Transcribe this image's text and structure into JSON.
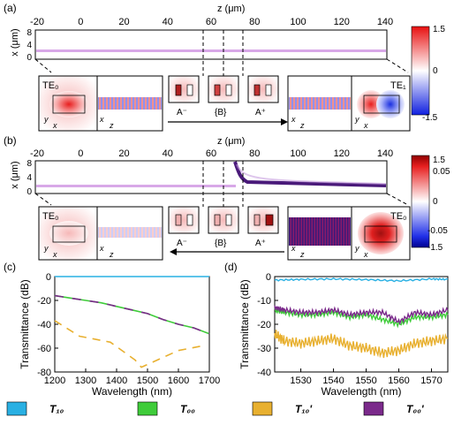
{
  "panel_a": {
    "label": "(a)",
    "z_axis_label": "z (μm)",
    "x_axis_label": "x (μm)",
    "z_ticks": [
      "-20",
      "0",
      "20",
      "40",
      "60",
      "80",
      "100",
      "120",
      "140"
    ],
    "x_ticks": [
      "8",
      "4",
      "0"
    ],
    "colorbar_ticks": [
      "1.5",
      "0",
      "-1.5"
    ],
    "left_mode": "TE₀",
    "right_mode": "TE₁",
    "boxes": [
      "A⁻",
      "{B}",
      "A⁺"
    ],
    "axis_y": "y",
    "axis_x": "x",
    "axis_z": "z"
  },
  "panel_b": {
    "label": "(b)",
    "z_axis_label": "z (μm)",
    "x_axis_label": "x (μm)",
    "z_ticks": [
      "-20",
      "0",
      "20",
      "40",
      "60",
      "80",
      "100",
      "120",
      "140"
    ],
    "x_ticks": [
      "8",
      "4",
      "0"
    ],
    "colorbar_ticks_outer": [
      "1.5",
      "-1.5"
    ],
    "colorbar_ticks_inner": [
      "0.05",
      "0",
      "-0.05"
    ],
    "left_mode": "TE₀",
    "right_mode": "TE₀",
    "boxes": [
      "A⁻",
      "{B}",
      "A⁺"
    ],
    "axis_y": "y",
    "axis_x": "x",
    "axis_z": "z"
  },
  "chart_data": [
    {
      "type": "line",
      "panel": "(c)",
      "xlabel": "Wavelength (nm)",
      "ylabel": "Transmittance (dB)",
      "xlim": [
        1200,
        1700
      ],
      "ylim": [
        -80,
        0
      ],
      "x_ticks": [
        "1200",
        "1300",
        "1400",
        "1500",
        "1600",
        "1700"
      ],
      "y_ticks": [
        "0",
        "-20",
        "-40",
        "-60",
        "-80"
      ],
      "series": [
        {
          "name": "T10",
          "color": "#29b0e3",
          "style": "solid",
          "x": [
            1200,
            1700
          ],
          "y": [
            0,
            0
          ]
        },
        {
          "name": "T00",
          "color": "#3fcc3a",
          "style": "solid",
          "x": [
            1200,
            1250,
            1300,
            1350,
            1400,
            1450,
            1500,
            1550,
            1600,
            1650,
            1700
          ],
          "y": [
            -16,
            -18,
            -20,
            -22,
            -25,
            -28,
            -31,
            -36,
            -40,
            -43,
            -48
          ]
        },
        {
          "name": "T00'",
          "color": "#7b2a8b",
          "style": "dash",
          "x": [
            1200,
            1250,
            1300,
            1350,
            1400,
            1450,
            1500,
            1550,
            1600,
            1650,
            1700
          ],
          "y": [
            -16,
            -18,
            -20,
            -22,
            -25,
            -28,
            -31,
            -36,
            -40,
            -43,
            -48
          ]
        },
        {
          "name": "T10'",
          "color": "#e8b030",
          "style": "dash",
          "x": [
            1200,
            1280,
            1380,
            1460,
            1480,
            1600,
            1680
          ],
          "y": [
            -37,
            -50,
            -55,
            -70,
            -76,
            -62,
            -58
          ]
        }
      ]
    },
    {
      "type": "line",
      "panel": "(d)",
      "xlabel": "Wavelength (nm)",
      "ylabel": "Transmittance (dB)",
      "xlim": [
        1522,
        1575
      ],
      "ylim": [
        -40,
        0
      ],
      "x_ticks": [
        "1530",
        "1540",
        "1550",
        "1560",
        "1570"
      ],
      "y_ticks": [
        "0",
        "-10",
        "-20",
        "-30",
        "-40"
      ],
      "series": [
        {
          "name": "T10",
          "color": "#29b0e3",
          "x": [
            1522,
            1530,
            1540,
            1550,
            1560,
            1570,
            1575
          ],
          "y": [
            -1.5,
            -1.2,
            -1.0,
            -1.3,
            -1.8,
            -1.0,
            -1.2
          ]
        },
        {
          "name": "T00",
          "color": "#3fcc3a",
          "x": [
            1522,
            1525,
            1530,
            1535,
            1540,
            1545,
            1550,
            1555,
            1560,
            1565,
            1570,
            1575
          ],
          "y": [
            -14,
            -15,
            -16,
            -16,
            -15,
            -17,
            -16,
            -18,
            -20,
            -17,
            -17,
            -16
          ]
        },
        {
          "name": "T00'",
          "color": "#7b2a8b",
          "x": [
            1522,
            1525,
            1530,
            1535,
            1540,
            1545,
            1550,
            1555,
            1560,
            1565,
            1570,
            1575
          ],
          "y": [
            -13,
            -14,
            -15,
            -15,
            -14,
            -16,
            -15,
            -15,
            -19,
            -15,
            -16,
            -14
          ]
        },
        {
          "name": "T10'",
          "color": "#e8b030",
          "x": [
            1522,
            1525,
            1530,
            1535,
            1540,
            1545,
            1550,
            1555,
            1560,
            1565,
            1570,
            1575
          ],
          "y": [
            -24,
            -27,
            -28,
            -27,
            -26,
            -29,
            -30,
            -32,
            -31,
            -28,
            -27,
            -26
          ]
        }
      ]
    }
  ],
  "legend": [
    {
      "label": "T₁₀",
      "color": "#29b0e3"
    },
    {
      "label": "T₀₀",
      "color": "#3fcc3a"
    },
    {
      "label": "T₁₀'",
      "color": "#e8b030"
    },
    {
      "label": "T₀₀'",
      "color": "#7b2a8b"
    }
  ]
}
